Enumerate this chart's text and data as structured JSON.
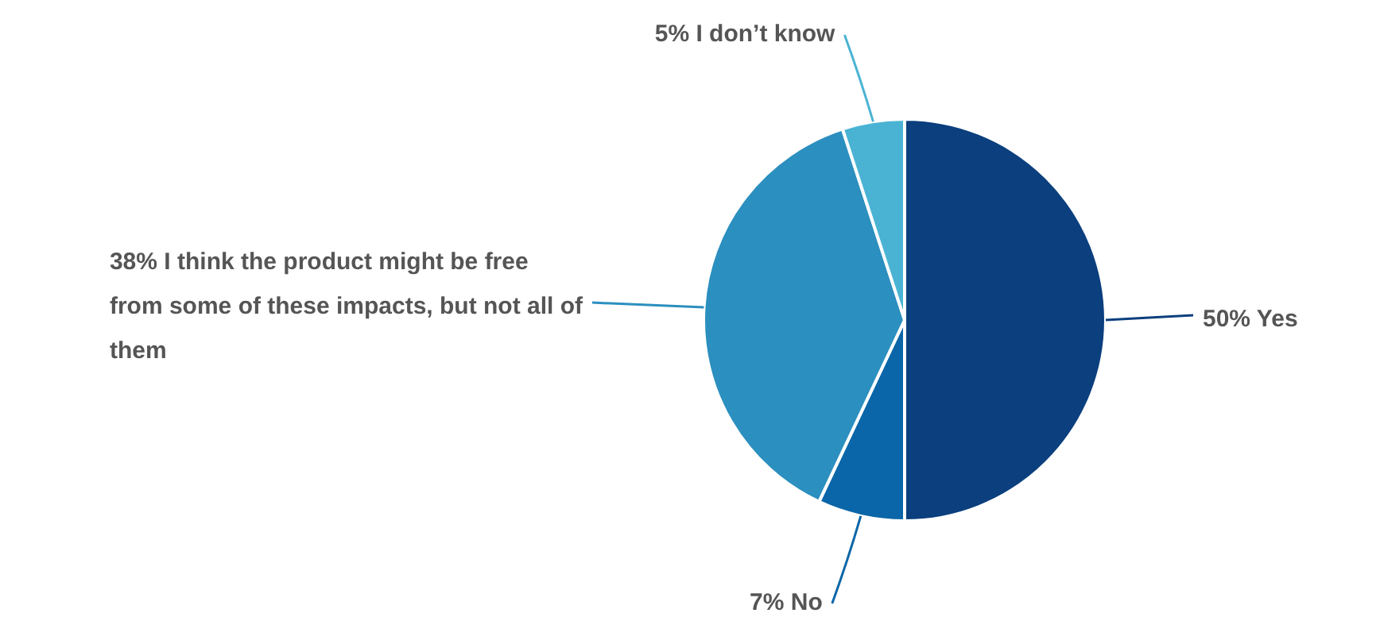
{
  "chart_data": {
    "type": "pie",
    "categories": [
      "50% Yes",
      "7% No",
      "38% I think the product might be free from some of these impacts, but not all of them",
      "5% I don’t know"
    ],
    "values": [
      50,
      7,
      38,
      5
    ],
    "colors": [
      "#0b3f7e",
      "#0a66a8",
      "#2b8fbf",
      "#4ab3d4"
    ],
    "legend": false
  }
}
